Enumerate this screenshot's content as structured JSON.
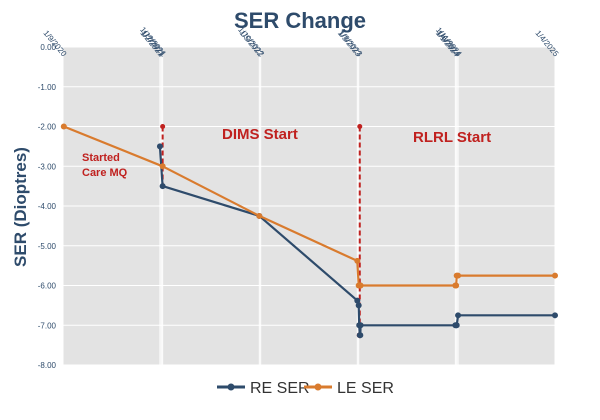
{
  "chart_data": {
    "type": "line",
    "title": "SER Change",
    "ylabel": "SER (Dioptres)",
    "xlabel": "",
    "ylim": [
      -8.0,
      0.0
    ],
    "yticks": [
      0.0,
      -1.0,
      -2.0,
      -3.0,
      -4.0,
      -5.0,
      -6.0,
      -7.0,
      -8.0
    ],
    "ytick_labels": [
      "0.00",
      "-1.00",
      "-2.00",
      "-3.00",
      "-4.00",
      "-5.00",
      "-6.00",
      "-7.00",
      "-8.00"
    ],
    "xlim": [
      "2020-01-09",
      "2025-01-04"
    ],
    "xticks": [
      "2020-01-09",
      "2021-01-02",
      "2021-01-07",
      "2021-01-12",
      "2022-01-05",
      "2022-01-10",
      "2023-01-03",
      "2023-01-08",
      "2024-01-01",
      "2024-01-06",
      "2024-01-11",
      "2025-01-04"
    ],
    "xtick_labels": [
      "1/9/2020",
      "1/2/2021",
      "1/7/2021",
      "1/12/2021",
      "1/5/2022",
      "1/10/2022",
      "1/3/2023",
      "1/8/2023",
      "1/1/2024",
      "1/6/2024",
      "1/11/2024",
      "1/4/2025"
    ],
    "grid": true,
    "legend_position": "bottom",
    "series": [
      {
        "name": "RE SER",
        "color": "#2e4b6b",
        "x": [
          "2021-01-02",
          "2021-01-12",
          "2022-01-05",
          "2023-01-03",
          "2023-01-08",
          "2023-01-10",
          "2023-01-12",
          "2023-01-14",
          "2023-01-15",
          "2024-01-01",
          "2024-01-04",
          "2024-01-06",
          "2024-01-11",
          "2025-01-04"
        ],
        "values": [
          -2.5,
          -3.5,
          -4.25,
          -6.38,
          -6.5,
          -7.0,
          -7.25,
          -7.25,
          -7.0,
          -7.0,
          -7.0,
          -7.0,
          -6.75,
          -6.75
        ]
      },
      {
        "name": "LE SER",
        "color": "#d97b2e",
        "x": [
          "2020-01-12",
          "2021-01-12",
          "2022-01-05",
          "2023-01-03",
          "2023-01-08",
          "2023-01-10",
          "2023-01-12",
          "2023-01-14",
          "2023-01-15",
          "2024-01-01",
          "2024-01-04",
          "2024-01-06",
          "2024-01-11",
          "2025-01-04"
        ],
        "values": [
          -2.0,
          -3.0,
          -4.25,
          -5.38,
          -6.0,
          -6.0,
          -6.0,
          -6.0,
          -6.0,
          -6.0,
          -6.0,
          -5.75,
          -5.75,
          -5.75
        ]
      }
    ],
    "annotations": [
      {
        "name": "started-care-mq",
        "lines": [
          "Started",
          "Care MQ"
        ],
        "color": "#c0211f"
      },
      {
        "name": "dims-start",
        "text": "DIMS Start",
        "x": "2021-01-12",
        "y_from": -2.0,
        "y_to": -3.5,
        "color": "#c0211f"
      },
      {
        "name": "rlrl-start",
        "text": "RLRL Start",
        "x": "2023-01-12",
        "y_from": -2.0,
        "y_to": -7.25,
        "color": "#c0211f"
      }
    ]
  }
}
